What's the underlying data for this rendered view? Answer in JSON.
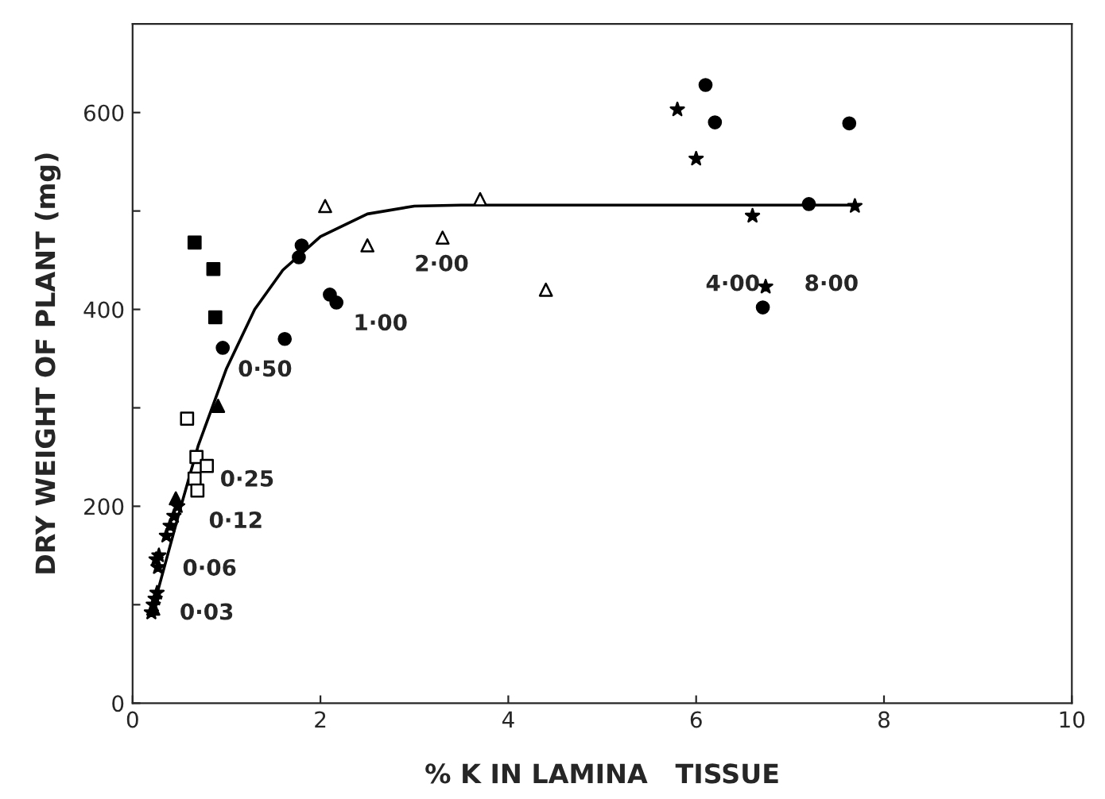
{
  "chart_data": {
    "type": "scatter",
    "xlabel": "% K IN LAMINA   TISSUE",
    "ylabel": "DRY WEIGHT OF PLANT (mg)",
    "xlim": [
      0,
      10
    ],
    "ylim": [
      0,
      690
    ],
    "xticks": [
      0,
      2,
      4,
      6,
      8,
      10
    ],
    "yticks": [
      0,
      {
        "value": 100,
        "label": null
      },
      200,
      {
        "value": 300,
        "label": null
      },
      400,
      {
        "value": 500,
        "label": null
      },
      600
    ],
    "grid": false,
    "legend": false,
    "series": [
      {
        "marker": "star",
        "color": "#000000",
        "x": [
          0.2,
          0.22,
          0.24,
          0.26,
          0.27,
          0.25,
          0.28,
          0.36,
          0.4,
          0.44,
          0.48
        ],
        "values": [
          92,
          100,
          106,
          112,
          138,
          146,
          150,
          170,
          180,
          190,
          200
        ]
      },
      {
        "marker": "triangle",
        "color": "#000000",
        "x": [
          0.22,
          0.46,
          0.91
        ],
        "values": [
          96,
          208,
          302
        ]
      },
      {
        "marker": "square",
        "color": "#ffffff",
        "x": [
          0.58,
          0.68,
          0.79,
          0.66,
          0.69
        ],
        "values": [
          289,
          250,
          241,
          228,
          216
        ]
      },
      {
        "marker": "square",
        "color": "#000000",
        "x": [
          0.66,
          0.86,
          0.88
        ],
        "values": [
          468,
          441,
          392
        ]
      },
      {
        "marker": "circle",
        "color": "#000000",
        "x": [
          0.96,
          1.62,
          1.77,
          1.8,
          2.1,
          2.17,
          6.1,
          6.2,
          6.71,
          7.2,
          7.63
        ],
        "values": [
          361,
          370,
          453,
          465,
          415,
          407,
          628,
          590,
          402,
          507,
          589
        ]
      },
      {
        "marker": "triangle",
        "color": "#ffffff",
        "x": [
          2.05,
          2.5,
          3.3,
          3.7,
          4.4
        ],
        "values": [
          505,
          465,
          473,
          512,
          420
        ]
      },
      {
        "marker": "star",
        "color": "#000000",
        "x": [
          5.8,
          6.0,
          6.6,
          6.74,
          7.69
        ],
        "values": [
          603,
          553,
          495,
          423,
          505
        ]
      },
      {
        "type": "line",
        "marker": "none",
        "line_style": "solid",
        "color": "#000000",
        "x": [
          0.2,
          0.3,
          0.5,
          0.7,
          1.0,
          1.3,
          1.6,
          2.0,
          2.5,
          3.0,
          3.5,
          7.7
        ],
        "values": [
          90,
          125,
          195,
          262,
          340,
          400,
          440,
          474,
          497,
          505,
          506,
          506
        ]
      }
    ],
    "annotations": [
      "0·03",
      "0·06",
      "0·12",
      "0·25",
      "0·50",
      "1·00",
      "2·00",
      "4·00",
      "8·00"
    ]
  }
}
